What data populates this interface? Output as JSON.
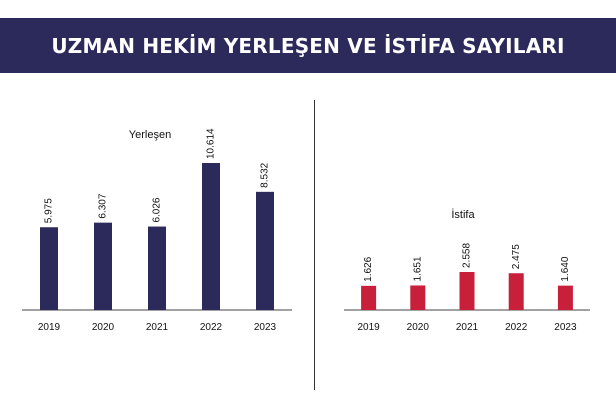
{
  "header": {
    "title": "UZMAN HEKİM YERLEŞEN VE İSTİFA SAYILARI"
  },
  "colors": {
    "title_bg": "#2b2a5a",
    "yerlesen_bar": "#2b2a5a",
    "istifa_bar": "#c8203a",
    "axis": "#444444",
    "divider": "#333333"
  },
  "chart_data": [
    {
      "type": "bar",
      "title": "Yerleşen",
      "categories": [
        "2019",
        "2020",
        "2021",
        "2022",
        "2023"
      ],
      "values": [
        5975,
        6307,
        6026,
        10614,
        8532
      ],
      "value_labels": [
        "5.975",
        "6.307",
        "6.026",
        "10.614",
        "8.532"
      ],
      "ylim": [
        0,
        10614
      ],
      "xlabel": "",
      "ylabel": "",
      "grid": false,
      "legend": "none"
    },
    {
      "type": "bar",
      "title": "İstifa",
      "categories": [
        "2019",
        "2020",
        "2021",
        "2022",
        "2023"
      ],
      "values": [
        1626,
        1651,
        2558,
        2475,
        1640
      ],
      "value_labels": [
        "1.626",
        "1.651",
        "2.558",
        "2.475",
        "1.640"
      ],
      "ylim": [
        0,
        2558
      ],
      "xlabel": "",
      "ylabel": "",
      "grid": false,
      "legend": "none"
    }
  ]
}
